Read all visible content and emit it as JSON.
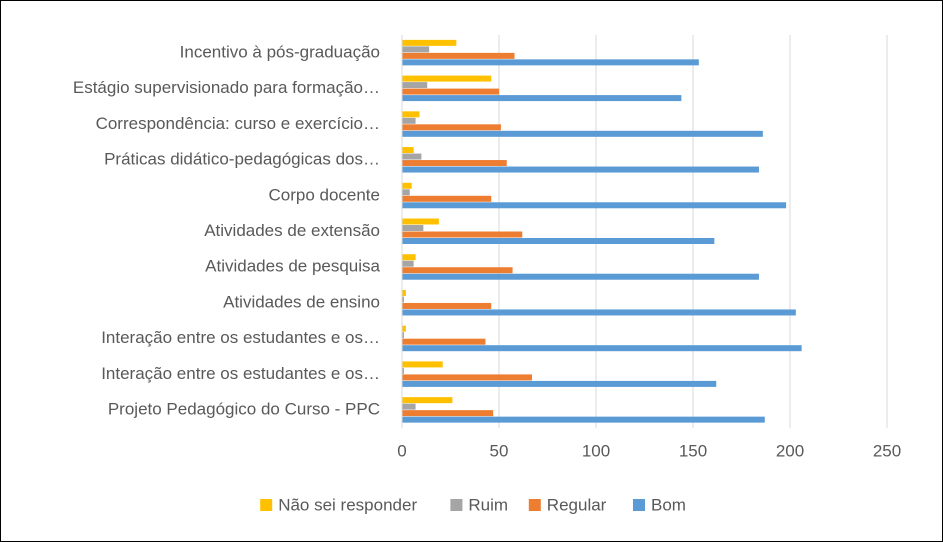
{
  "chart_data": {
    "type": "bar",
    "orientation": "horizontal",
    "categories": [
      "Incentivo à  pós-graduação",
      "Estágio supervisionado para formação…",
      "Correspondência: curso e exercício…",
      "Práticas didático-pedagógicas dos…",
      "Corpo docente",
      "Atividades de extensão",
      "Atividades de pesquisa",
      "Atividades de ensino",
      "Interação entre os estudantes e os…",
      "Interação entre os estudantes e os…",
      "Projeto Pedagógico do Curso - PPC"
    ],
    "series": [
      {
        "name": "Não sei responder",
        "color": "#FFC000",
        "values": [
          28,
          46,
          9,
          6,
          5,
          19,
          7,
          2,
          2,
          21,
          26
        ]
      },
      {
        "name": "Ruim",
        "color": "#A5A5A5",
        "values": [
          14,
          13,
          7,
          10,
          4,
          11,
          6,
          1,
          1,
          1,
          7
        ]
      },
      {
        "name": "Regular",
        "color": "#ED7D31",
        "values": [
          58,
          50,
          51,
          54,
          46,
          62,
          57,
          46,
          43,
          67,
          47
        ]
      },
      {
        "name": "Bom",
        "color": "#5B9BD5",
        "values": [
          153,
          144,
          186,
          184,
          198,
          161,
          184,
          203,
          206,
          162,
          187
        ]
      }
    ],
    "xlim": [
      0,
      250
    ],
    "xticks": [
      0,
      50,
      100,
      150,
      200,
      250
    ],
    "grid": true,
    "legend": "bottom"
  }
}
